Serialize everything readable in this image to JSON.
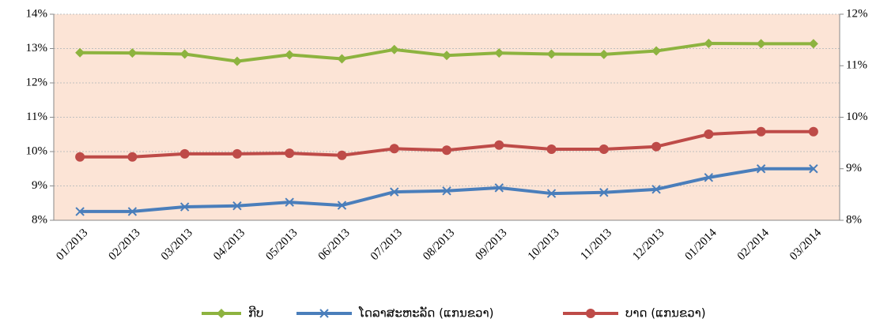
{
  "chart_data": {
    "type": "line",
    "categories": [
      "01/2013",
      "02/2013",
      "03/2013",
      "04/2013",
      "05/2013",
      "06/2013",
      "07/2013",
      "08/2013",
      "09/2013",
      "10/2013",
      "11/2013",
      "12/2013",
      "01/2014",
      "02/2014",
      "03/2014"
    ],
    "series": [
      {
        "name": "ກີບ",
        "color": "#8db33f",
        "marker": "diamond",
        "values": [
          12.88,
          12.87,
          12.84,
          12.63,
          12.82,
          12.7,
          12.97,
          12.8,
          12.87,
          12.84,
          12.83,
          12.93,
          13.15,
          13.14,
          13.14
        ]
      },
      {
        "name": "ໂດລາສະຫະລັດ (ແກນຂວາ)",
        "color": "#4a7ebb",
        "marker": "x",
        "axis": "y2",
        "values": [
          8.17,
          8.17,
          8.26,
          8.28,
          8.35,
          8.29,
          8.55,
          8.57,
          8.63,
          8.52,
          8.54,
          8.6,
          8.83,
          9.0,
          9.0
        ]
      },
      {
        "name": "ບາດ (ແກນຂວາ)",
        "color": "#be4b48",
        "marker": "circle",
        "axis": "y2",
        "values": [
          9.23,
          9.23,
          9.29,
          9.29,
          9.3,
          9.26,
          9.39,
          9.36,
          9.46,
          9.38,
          9.38,
          9.43,
          9.67,
          9.72,
          9.72
        ]
      }
    ],
    "ylim": [
      8,
      14
    ],
    "yticks": [
      {
        "value": 8,
        "label": "8%"
      },
      {
        "value": 9,
        "label": "9%"
      },
      {
        "value": 10,
        "label": "10%"
      },
      {
        "value": 11,
        "label": "11%"
      },
      {
        "value": 12,
        "label": "12%"
      },
      {
        "value": 13,
        "label": "13%"
      },
      {
        "value": 14,
        "label": "14%"
      }
    ],
    "y2lim": [
      8,
      12
    ],
    "y2ticks": [
      {
        "value": 8,
        "label": "8%"
      },
      {
        "value": 9,
        "label": "9%"
      },
      {
        "value": 10,
        "label": "10%"
      },
      {
        "value": 11,
        "label": "11%"
      },
      {
        "value": 12,
        "label": "12%"
      }
    ],
    "grid": true,
    "legend": "bottom"
  }
}
